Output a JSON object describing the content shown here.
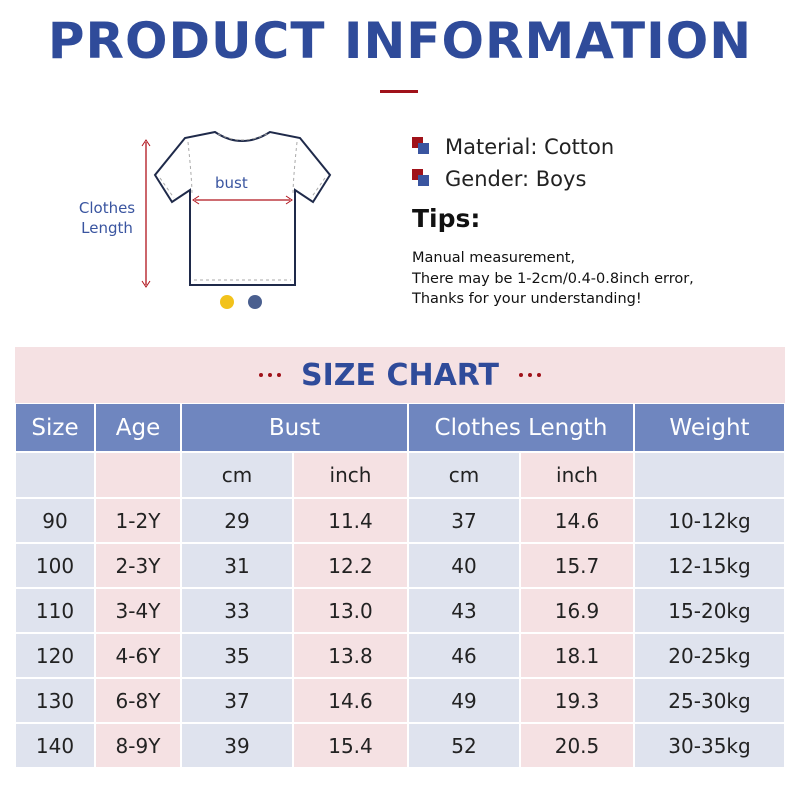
{
  "header": {
    "title": "PRODUCT INFORMATION"
  },
  "figure": {
    "length_label": "Clothes Length",
    "bust_label": "bust"
  },
  "info": {
    "items": [
      "Material: Cotton",
      "Gender: Boys"
    ],
    "tips_title": "Tips:",
    "tips_lines": [
      "Manual measurement,",
      "There may be 1-2cm/0.4-0.8inch error,",
      "Thanks for your understanding!"
    ]
  },
  "table": {
    "title": "SIZE CHART",
    "headers": [
      "Size",
      "Age",
      "Bust",
      "Clothes Length",
      "Weight"
    ],
    "subheaders": [
      "cm",
      "inch",
      "cm",
      "inch"
    ],
    "rows": [
      [
        "90",
        "1-2Y",
        "29",
        "11.4",
        "37",
        "14.6",
        "10-12kg"
      ],
      [
        "100",
        "2-3Y",
        "31",
        "12.2",
        "40",
        "15.7",
        "12-15kg"
      ],
      [
        "110",
        "3-4Y",
        "33",
        "13.0",
        "43",
        "16.9",
        "15-20kg"
      ],
      [
        "120",
        "4-6Y",
        "35",
        "13.8",
        "46",
        "18.1",
        "20-25kg"
      ],
      [
        "130",
        "6-8Y",
        "37",
        "14.6",
        "49",
        "19.3",
        "25-30kg"
      ],
      [
        "140",
        "8-9Y",
        "39",
        "15.4",
        "52",
        "20.5",
        "30-35kg"
      ]
    ]
  }
}
